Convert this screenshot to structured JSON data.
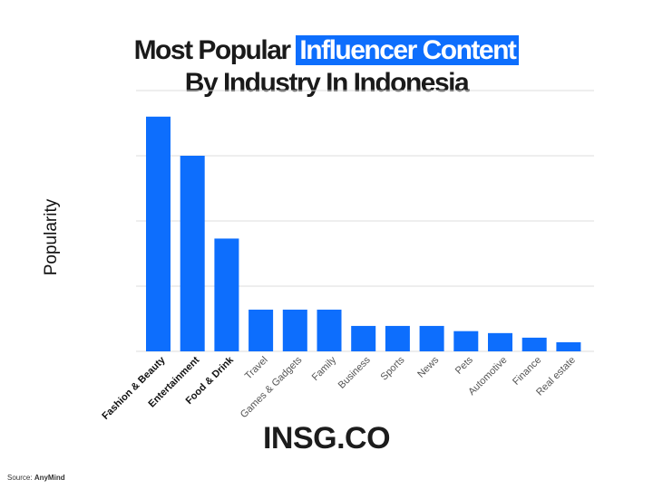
{
  "chart_data": {
    "type": "bar",
    "title_part1": "Most Popular",
    "title_highlight": "Influencer Content",
    "title_line2": "By Industry In Indonesia",
    "ylabel": "Popularity",
    "xlabel": "",
    "categories": [
      "Fashion & Beauty",
      "Entertainment",
      "Food & Drink",
      "Travel",
      "Games & Gadgets",
      "Family",
      "Business",
      "Sports",
      "News",
      "Pets",
      "Automotive",
      "Finance",
      "Real estate"
    ],
    "bold_categories": [
      "Fashion & Beauty",
      "Entertainment",
      "Food & Drink"
    ],
    "values": [
      3.6,
      3.0,
      1.73,
      0.64,
      0.64,
      0.64,
      0.39,
      0.39,
      0.39,
      0.31,
      0.28,
      0.21,
      0.14
    ],
    "ylim": [
      0,
      4
    ],
    "grid": true,
    "bar_color": "#0d6efd",
    "grid_color": "#dcdcdc"
  },
  "brand": "INSG.CO",
  "source_prefix": "Source:",
  "source_name": "AnyMind"
}
